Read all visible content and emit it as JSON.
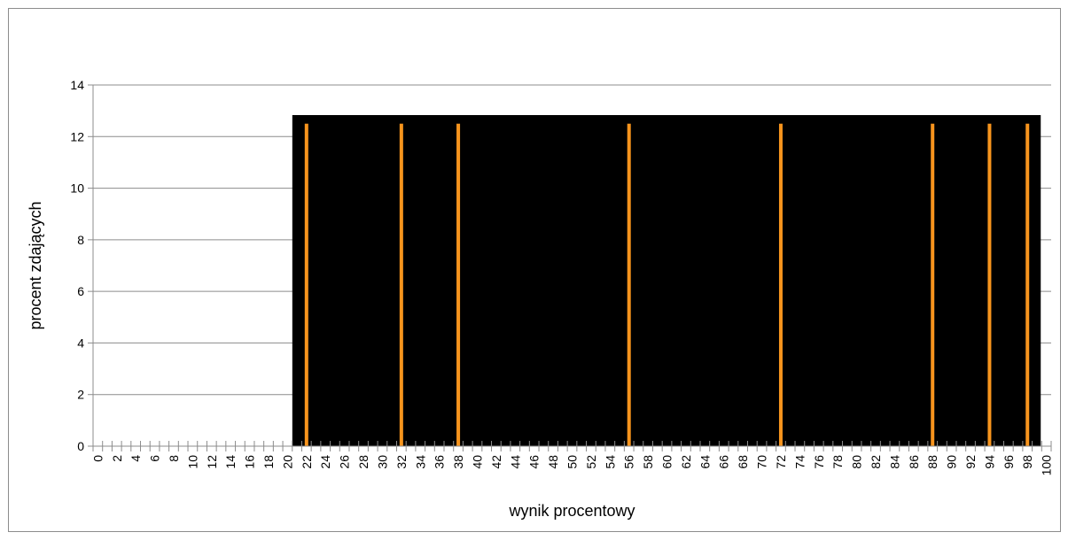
{
  "chart_data": {
    "type": "bar",
    "title": "",
    "xlabel": "wynik procentowy",
    "ylabel": "procent zdających",
    "x": [
      0,
      1,
      2,
      3,
      4,
      5,
      6,
      7,
      8,
      9,
      10,
      11,
      12,
      13,
      14,
      15,
      16,
      17,
      18,
      19,
      20,
      21,
      22,
      23,
      24,
      25,
      26,
      27,
      28,
      29,
      30,
      31,
      32,
      33,
      34,
      35,
      36,
      37,
      38,
      39,
      40,
      41,
      42,
      43,
      44,
      45,
      46,
      47,
      48,
      49,
      50,
      51,
      52,
      53,
      54,
      55,
      56,
      57,
      58,
      59,
      60,
      61,
      62,
      63,
      64,
      65,
      66,
      67,
      68,
      69,
      70,
      71,
      72,
      73,
      74,
      75,
      76,
      77,
      78,
      79,
      80,
      81,
      82,
      83,
      84,
      85,
      86,
      87,
      88,
      89,
      90,
      91,
      92,
      93,
      94,
      95,
      96,
      97,
      98,
      99,
      100
    ],
    "x_tick_labels": [
      "0",
      "2",
      "4",
      "6",
      "8",
      "10",
      "12",
      "14",
      "16",
      "18",
      "20",
      "22",
      "24",
      "26",
      "28",
      "30",
      "32",
      "34",
      "36",
      "38",
      "40",
      "42",
      "44",
      "46",
      "48",
      "50",
      "52",
      "54",
      "56",
      "58",
      "60",
      "62",
      "64",
      "66",
      "68",
      "70",
      "72",
      "74",
      "76",
      "78",
      "80",
      "82",
      "84",
      "86",
      "88",
      "90",
      "92",
      "94",
      "96",
      "98",
      "100"
    ],
    "y_tick_labels": [
      "0",
      "2",
      "4",
      "6",
      "8",
      "10",
      "12",
      "14"
    ],
    "series": [
      {
        "points": [
          {
            "x": 22,
            "y": 12.5
          },
          {
            "x": 32,
            "y": 12.5
          },
          {
            "x": 38,
            "y": 12.5
          },
          {
            "x": 56,
            "y": 12.5
          },
          {
            "x": 72,
            "y": 12.5
          },
          {
            "x": 88,
            "y": 12.5
          },
          {
            "x": 94,
            "y": 12.5
          },
          {
            "x": 98,
            "y": 12.5
          }
        ]
      }
    ],
    "ylim": [
      0,
      14
    ],
    "xlim": [
      0,
      100
    ],
    "grid": true,
    "colors": {
      "bar": "#f7941d",
      "plot_background": "#000000",
      "gridline": "#8c8c8c",
      "axis": "#8c8c8c"
    }
  }
}
